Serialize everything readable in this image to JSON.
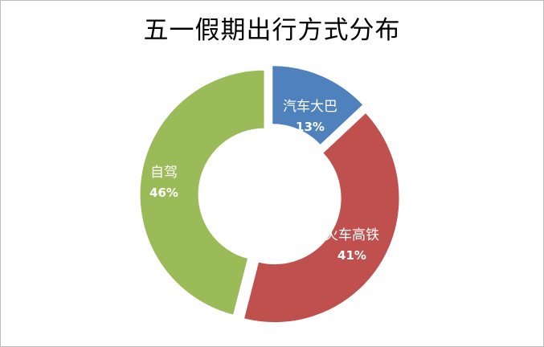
{
  "chart_data": {
    "type": "pie",
    "title": "五一假期出行方式分布",
    "slices": [
      {
        "label": "汽车大巴",
        "value": 13,
        "value_label": "13%",
        "color": "#4F81BD"
      },
      {
        "label": "火车高铁",
        "value": 41,
        "value_label": "41%",
        "color": "#C0504D"
      },
      {
        "label": "自驾",
        "value": 46,
        "value_label": "46%",
        "color": "#9BBB59"
      }
    ],
    "style": "doughnut",
    "legend": "none"
  }
}
